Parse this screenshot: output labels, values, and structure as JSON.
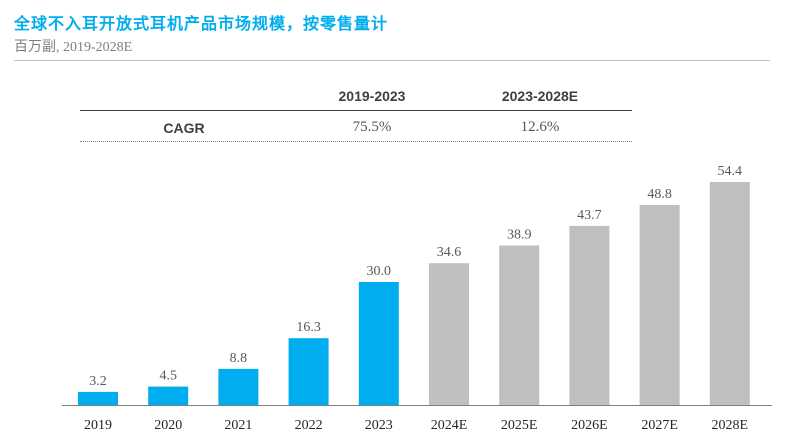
{
  "header": {
    "title": "全球不入耳开放式耳机产品市场规模，按零售量计",
    "subtitle": "百万副, 2019-2028E"
  },
  "cagr": {
    "label": "CAGR",
    "periods": [
      "2019-2023",
      "2023-2028E"
    ],
    "values": [
      "75.5%",
      "12.6%"
    ]
  },
  "colors": {
    "historical": "#00AEEF",
    "forecast": "#BFBFBF",
    "title": "#00AEEF"
  },
  "chart_data": {
    "type": "bar",
    "title": "全球不入耳开放式耳机产品市场规模，按零售量计",
    "subtitle": "百万副, 2019-2028E",
    "xlabel": "",
    "ylabel": "",
    "categories": [
      "2019",
      "2020",
      "2021",
      "2022",
      "2023",
      "2024E",
      "2025E",
      "2026E",
      "2027E",
      "2028E"
    ],
    "values": [
      3.2,
      4.5,
      8.8,
      16.3,
      30.0,
      34.6,
      38.9,
      43.7,
      48.8,
      54.4
    ],
    "value_labels": [
      "3.2",
      "4.5",
      "8.8",
      "16.3",
      "30.0",
      "34.6",
      "38.9",
      "43.7",
      "48.8",
      "54.4"
    ],
    "forecast": [
      false,
      false,
      false,
      false,
      false,
      true,
      true,
      true,
      true,
      true
    ],
    "ylim": [
      0,
      54.4
    ],
    "grid": false,
    "legend": "none"
  }
}
